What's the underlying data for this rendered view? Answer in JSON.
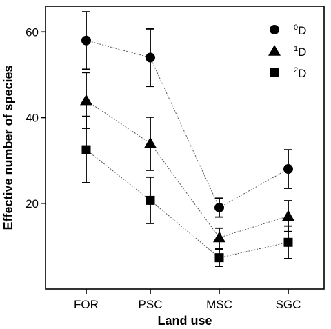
{
  "chart_data": {
    "type": "scatter",
    "title": "",
    "xlabel": "Land use",
    "ylabel": "Effective number of species",
    "categories": [
      "FOR",
      "PSC",
      "MSC",
      "SGC"
    ],
    "ylim": [
      0,
      66
    ],
    "yticks": [
      20,
      40,
      60
    ],
    "grid": false,
    "legend_position": "top-right",
    "connector_style": "dotted",
    "series": [
      {
        "name": "0D",
        "sup": "0",
        "base": "D",
        "marker": "circle",
        "values": [
          58,
          54,
          19,
          28
        ],
        "lower": [
          51.3,
          47.3,
          16.8,
          23.5
        ],
        "upper": [
          64.7,
          60.7,
          21.2,
          32.5
        ]
      },
      {
        "name": "1D",
        "sup": "1",
        "base": "D",
        "marker": "triangle",
        "values": [
          44,
          34,
          12,
          17
        ],
        "lower": [
          37.5,
          27.7,
          9.5,
          13.4
        ],
        "upper": [
          50.5,
          40.1,
          14.2,
          20.6
        ]
      },
      {
        "name": "2D",
        "sup": "2",
        "base": "D",
        "marker": "square",
        "values": [
          32.5,
          20.7,
          7.3,
          10.9
        ],
        "lower": [
          24.8,
          15.3,
          5.3,
          7.1
        ],
        "upper": [
          40.3,
          26.1,
          9.3,
          14.7
        ]
      }
    ]
  }
}
